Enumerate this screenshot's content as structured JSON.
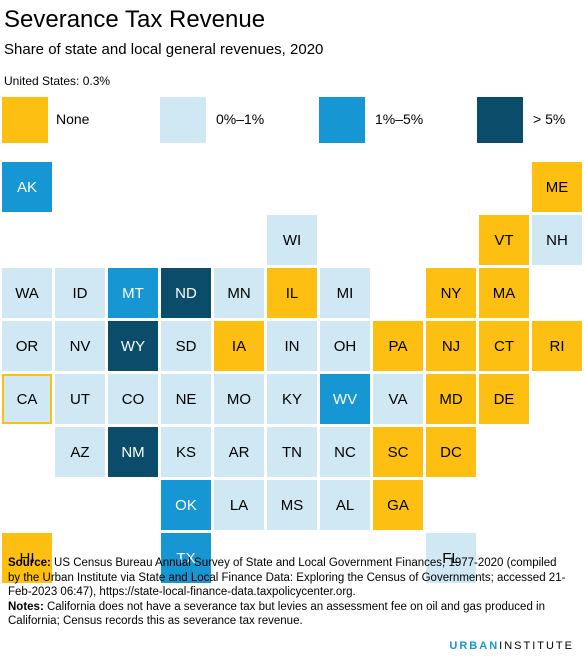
{
  "header": {
    "title": "Severance Tax Revenue",
    "subtitle": "Share of state and local general revenues, 2020",
    "us_value": "United States: 0.3%"
  },
  "legend": [
    {
      "key": "none",
      "label": "None",
      "color": "#fdbf11"
    },
    {
      "key": "low",
      "label": "0%–1%",
      "color": "#cfe8f3"
    },
    {
      "key": "mid",
      "label": "1%–5%",
      "color": "#1696d2"
    },
    {
      "key": "high",
      "label": "> 5%",
      "color": "#0a4c6a"
    }
  ],
  "states": [
    {
      "abbr": "AK",
      "category": "mid"
    },
    {
      "abbr": "ME",
      "category": "none"
    },
    {
      "abbr": "WI",
      "category": "low"
    },
    {
      "abbr": "VT",
      "category": "none"
    },
    {
      "abbr": "NH",
      "category": "low"
    },
    {
      "abbr": "WA",
      "category": "low"
    },
    {
      "abbr": "ID",
      "category": "low"
    },
    {
      "abbr": "MT",
      "category": "mid"
    },
    {
      "abbr": "ND",
      "category": "high"
    },
    {
      "abbr": "MN",
      "category": "low"
    },
    {
      "abbr": "IL",
      "category": "none"
    },
    {
      "abbr": "MI",
      "category": "low"
    },
    {
      "abbr": "NY",
      "category": "none"
    },
    {
      "abbr": "MA",
      "category": "none"
    },
    {
      "abbr": "OR",
      "category": "low"
    },
    {
      "abbr": "NV",
      "category": "low"
    },
    {
      "abbr": "WY",
      "category": "high"
    },
    {
      "abbr": "SD",
      "category": "low"
    },
    {
      "abbr": "IA",
      "category": "none"
    },
    {
      "abbr": "IN",
      "category": "low"
    },
    {
      "abbr": "OH",
      "category": "low"
    },
    {
      "abbr": "PA",
      "category": "none"
    },
    {
      "abbr": "NJ",
      "category": "none"
    },
    {
      "abbr": "CT",
      "category": "none"
    },
    {
      "abbr": "RI",
      "category": "none"
    },
    {
      "abbr": "CA",
      "category": "low",
      "outlined": true
    },
    {
      "abbr": "UT",
      "category": "low"
    },
    {
      "abbr": "CO",
      "category": "low"
    },
    {
      "abbr": "NE",
      "category": "low"
    },
    {
      "abbr": "MO",
      "category": "low"
    },
    {
      "abbr": "KY",
      "category": "low"
    },
    {
      "abbr": "WV",
      "category": "mid"
    },
    {
      "abbr": "VA",
      "category": "low"
    },
    {
      "abbr": "MD",
      "category": "none"
    },
    {
      "abbr": "DE",
      "category": "none"
    },
    {
      "abbr": "AZ",
      "category": "low"
    },
    {
      "abbr": "NM",
      "category": "high"
    },
    {
      "abbr": "KS",
      "category": "low"
    },
    {
      "abbr": "AR",
      "category": "low"
    },
    {
      "abbr": "TN",
      "category": "low"
    },
    {
      "abbr": "NC",
      "category": "low"
    },
    {
      "abbr": "SC",
      "category": "none"
    },
    {
      "abbr": "DC",
      "category": "none"
    },
    {
      "abbr": "OK",
      "category": "mid"
    },
    {
      "abbr": "LA",
      "category": "low"
    },
    {
      "abbr": "MS",
      "category": "low"
    },
    {
      "abbr": "AL",
      "category": "low"
    },
    {
      "abbr": "GA",
      "category": "none"
    },
    {
      "abbr": "HI",
      "category": "none"
    },
    {
      "abbr": "TX",
      "category": "mid"
    },
    {
      "abbr": "FL",
      "category": "low"
    }
  ],
  "footnote": {
    "source_label": "Source:",
    "source_text": "US Census Bureau Annual Survey of State and Local Government Finances, 1977-2020 (compiled by the Urban Institute via State and Local Finance Data: Exploring the Census of Governments; accessed 21-Feb-2023 06:47), https://state-local-finance-data.taxpolicycenter.org.",
    "notes_label": "Notes:",
    "notes_text": "California does not have a severance tax but levies an assessment fee on oil and gas produced in California; Census records this as severance tax revenue."
  },
  "brand": {
    "part1": "URBAN",
    "part2": "INSTITUTE"
  }
}
